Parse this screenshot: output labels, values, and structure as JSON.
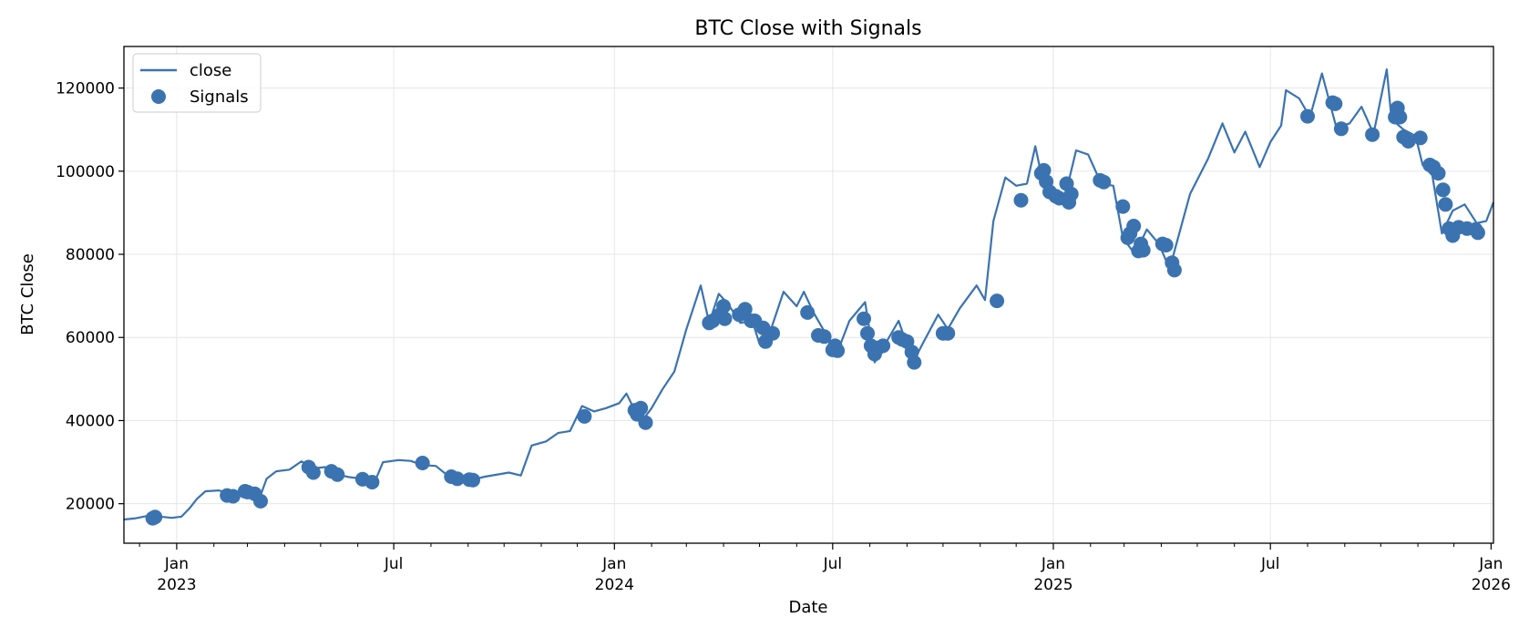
{
  "chart_data": {
    "type": "line",
    "title": "BTC Close with Signals",
    "xlabel": "Date",
    "ylabel": "BTC Close",
    "xlim": [
      "2022-11-18",
      "2026-01-03"
    ],
    "ylim": [
      10500,
      130000
    ],
    "grid": true,
    "legend": "top-left",
    "legend_entries": [
      "close",
      "Signals"
    ],
    "colors": {
      "series": "#3b73b0",
      "grid": "#e6e6e6",
      "axis": "#000000"
    },
    "y_ticks": [
      {
        "value": 20000,
        "label": "20000"
      },
      {
        "value": 40000,
        "label": "40000"
      },
      {
        "value": 60000,
        "label": "60000"
      },
      {
        "value": 80000,
        "label": "80000"
      },
      {
        "value": 100000,
        "label": "100000"
      },
      {
        "value": 120000,
        "label": "120000"
      }
    ],
    "x_major_ticks": [
      {
        "date": "2023-01-01",
        "label": "Jan",
        "sublabel": "2023"
      },
      {
        "date": "2023-07-01",
        "label": "Jul",
        "sublabel": ""
      },
      {
        "date": "2024-01-01",
        "label": "Jan",
        "sublabel": "2024"
      },
      {
        "date": "2024-07-01",
        "label": "Jul",
        "sublabel": ""
      },
      {
        "date": "2025-01-01",
        "label": "Jan",
        "sublabel": "2025"
      },
      {
        "date": "2025-07-01",
        "label": "Jul",
        "sublabel": ""
      },
      {
        "date": "2026-01-01",
        "label": "Jan",
        "sublabel": "2026"
      }
    ],
    "series": [
      {
        "name": "close",
        "kind": "line",
        "points": [
          [
            "2022-11-18",
            16200
          ],
          [
            "2022-11-28",
            16500
          ],
          [
            "2022-12-08",
            17100
          ],
          [
            "2022-12-18",
            16900
          ],
          [
            "2022-12-28",
            16600
          ],
          [
            "2023-01-05",
            16900
          ],
          [
            "2023-01-12",
            19000
          ],
          [
            "2023-01-18",
            21200
          ],
          [
            "2023-01-25",
            23000
          ],
          [
            "2023-02-05",
            23200
          ],
          [
            "2023-02-15",
            22400
          ],
          [
            "2023-02-25",
            23000
          ],
          [
            "2023-03-05",
            22000
          ],
          [
            "2023-03-10",
            20500
          ],
          [
            "2023-03-17",
            26000
          ],
          [
            "2023-03-25",
            27800
          ],
          [
            "2023-04-05",
            28200
          ],
          [
            "2023-04-15",
            30200
          ],
          [
            "2023-04-25",
            28500
          ],
          [
            "2023-05-05",
            28800
          ],
          [
            "2023-05-15",
            27000
          ],
          [
            "2023-05-25",
            26400
          ],
          [
            "2023-06-05",
            26000
          ],
          [
            "2023-06-15",
            25200
          ],
          [
            "2023-06-22",
            30000
          ],
          [
            "2023-07-05",
            30500
          ],
          [
            "2023-07-15",
            30300
          ],
          [
            "2023-07-25",
            29300
          ],
          [
            "2023-08-05",
            29100
          ],
          [
            "2023-08-17",
            26300
          ],
          [
            "2023-08-25",
            26000
          ],
          [
            "2023-09-05",
            25800
          ],
          [
            "2023-09-15",
            26500
          ],
          [
            "2023-10-05",
            27500
          ],
          [
            "2023-10-15",
            26800
          ],
          [
            "2023-10-24",
            34000
          ],
          [
            "2023-11-05",
            35000
          ],
          [
            "2023-11-15",
            37000
          ],
          [
            "2023-11-25",
            37500
          ],
          [
            "2023-12-05",
            43500
          ],
          [
            "2023-12-15",
            42200
          ],
          [
            "2023-12-25",
            43000
          ],
          [
            "2024-01-05",
            44200
          ],
          [
            "2024-01-11",
            46500
          ],
          [
            "2024-01-23",
            39500
          ],
          [
            "2024-02-01",
            43000
          ],
          [
            "2024-02-10",
            47500
          ],
          [
            "2024-02-20",
            51800
          ],
          [
            "2024-03-01",
            62000
          ],
          [
            "2024-03-13",
            72500
          ],
          [
            "2024-03-20",
            63500
          ],
          [
            "2024-03-28",
            70500
          ],
          [
            "2024-04-05",
            68000
          ],
          [
            "2024-04-15",
            63500
          ],
          [
            "2024-04-25",
            64000
          ],
          [
            "2024-05-01",
            58500
          ],
          [
            "2024-05-10",
            61500
          ],
          [
            "2024-05-21",
            71000
          ],
          [
            "2024-06-01",
            67500
          ],
          [
            "2024-06-07",
            71000
          ],
          [
            "2024-06-15",
            66000
          ],
          [
            "2024-06-25",
            61000
          ],
          [
            "2024-07-05",
            56500
          ],
          [
            "2024-07-15",
            64000
          ],
          [
            "2024-07-28",
            68500
          ],
          [
            "2024-08-05",
            54000
          ],
          [
            "2024-08-15",
            59000
          ],
          [
            "2024-08-25",
            64000
          ],
          [
            "2024-09-06",
            54000
          ],
          [
            "2024-09-15",
            59000
          ],
          [
            "2024-09-27",
            65500
          ],
          [
            "2024-10-05",
            62000
          ],
          [
            "2024-10-15",
            67000
          ],
          [
            "2024-10-29",
            72500
          ],
          [
            "2024-11-05",
            69000
          ],
          [
            "2024-11-12",
            88000
          ],
          [
            "2024-11-22",
            98500
          ],
          [
            "2024-12-01",
            96500
          ],
          [
            "2024-12-10",
            97000
          ],
          [
            "2024-12-17",
            106000
          ],
          [
            "2024-12-25",
            95000
          ],
          [
            "2025-01-01",
            94000
          ],
          [
            "2025-01-10",
            93000
          ],
          [
            "2025-01-20",
            105000
          ],
          [
            "2025-01-30",
            104000
          ],
          [
            "2025-02-10",
            97000
          ],
          [
            "2025-02-20",
            96500
          ],
          [
            "2025-02-28",
            84000
          ],
          [
            "2025-03-10",
            80000
          ],
          [
            "2025-03-20",
            86000
          ],
          [
            "2025-03-30",
            82500
          ],
          [
            "2025-04-08",
            76500
          ],
          [
            "2025-04-15",
            84000
          ],
          [
            "2025-04-25",
            94500
          ],
          [
            "2025-05-10",
            103000
          ],
          [
            "2025-05-22",
            111500
          ],
          [
            "2025-06-01",
            104500
          ],
          [
            "2025-06-10",
            109500
          ],
          [
            "2025-06-22",
            101000
          ],
          [
            "2025-07-01",
            107000
          ],
          [
            "2025-07-10",
            111000
          ],
          [
            "2025-07-14",
            119500
          ],
          [
            "2025-07-25",
            117500
          ],
          [
            "2025-08-03",
            113000
          ],
          [
            "2025-08-13",
            123500
          ],
          [
            "2025-08-25",
            110500
          ],
          [
            "2025-09-05",
            111500
          ],
          [
            "2025-09-15",
            115500
          ],
          [
            "2025-09-25",
            109000
          ],
          [
            "2025-10-06",
            124500
          ],
          [
            "2025-10-10",
            112500
          ],
          [
            "2025-10-20",
            110000
          ],
          [
            "2025-10-30",
            108500
          ],
          [
            "2025-11-05",
            101500
          ],
          [
            "2025-11-13",
            99000
          ],
          [
            "2025-11-21",
            85000
          ],
          [
            "2025-11-30",
            90500
          ],
          [
            "2025-12-10",
            92000
          ],
          [
            "2025-12-20",
            87500
          ],
          [
            "2025-12-28",
            88000
          ],
          [
            "2026-01-03",
            92500
          ]
        ]
      },
      {
        "name": "Signals",
        "kind": "scatter",
        "points": [
          [
            "2022-12-12",
            16500
          ],
          [
            "2022-12-14",
            16800
          ],
          [
            "2023-02-12",
            22000
          ],
          [
            "2023-02-17",
            21800
          ],
          [
            "2023-02-27",
            23000
          ],
          [
            "2023-03-01",
            22800
          ],
          [
            "2023-03-07",
            22400
          ],
          [
            "2023-03-12",
            20600
          ],
          [
            "2023-04-21",
            28800
          ],
          [
            "2023-04-25",
            27500
          ],
          [
            "2023-05-10",
            27800
          ],
          [
            "2023-05-15",
            27000
          ],
          [
            "2023-06-05",
            25900
          ],
          [
            "2023-06-13",
            25200
          ],
          [
            "2023-07-25",
            29800
          ],
          [
            "2023-08-18",
            26500
          ],
          [
            "2023-08-23",
            26000
          ],
          [
            "2023-09-02",
            25800
          ],
          [
            "2023-09-05",
            25700
          ],
          [
            "2023-12-07",
            41000
          ],
          [
            "2024-01-18",
            42500
          ],
          [
            "2024-01-20",
            41500
          ],
          [
            "2024-01-23",
            43000
          ],
          [
            "2024-01-27",
            39500
          ],
          [
            "2024-03-20",
            63500
          ],
          [
            "2024-03-23",
            64000
          ],
          [
            "2024-03-29",
            65500
          ],
          [
            "2024-04-01",
            67500
          ],
          [
            "2024-04-02",
            64500
          ],
          [
            "2024-04-14",
            65500
          ],
          [
            "2024-04-19",
            66800
          ],
          [
            "2024-04-24",
            64000
          ],
          [
            "2024-04-27",
            64000
          ],
          [
            "2024-05-04",
            62300
          ],
          [
            "2024-05-06",
            59000
          ],
          [
            "2024-05-12",
            61000
          ],
          [
            "2024-06-10",
            66000
          ],
          [
            "2024-06-19",
            60500
          ],
          [
            "2024-06-24",
            60200
          ],
          [
            "2024-07-01",
            57000
          ],
          [
            "2024-07-03",
            58000
          ],
          [
            "2024-07-05",
            56800
          ],
          [
            "2024-07-27",
            64500
          ],
          [
            "2024-07-30",
            61000
          ],
          [
            "2024-08-02",
            58000
          ],
          [
            "2024-08-05",
            56000
          ],
          [
            "2024-08-08",
            57500
          ],
          [
            "2024-08-12",
            58000
          ],
          [
            "2024-08-25",
            60000
          ],
          [
            "2024-08-28",
            59500
          ],
          [
            "2024-09-01",
            59000
          ],
          [
            "2024-09-05",
            56500
          ],
          [
            "2024-09-07",
            54000
          ],
          [
            "2024-10-01",
            61000
          ],
          [
            "2024-10-05",
            61000
          ],
          [
            "2024-11-15",
            68800
          ],
          [
            "2024-12-05",
            93000
          ],
          [
            "2024-12-22",
            99500
          ],
          [
            "2024-12-24",
            100200
          ],
          [
            "2024-12-26",
            97500
          ],
          [
            "2024-12-29",
            95000
          ],
          [
            "2025-01-03",
            94000
          ],
          [
            "2025-01-06",
            93500
          ],
          [
            "2025-01-12",
            97000
          ],
          [
            "2025-01-14",
            92500
          ],
          [
            "2025-01-16",
            94500
          ],
          [
            "2025-02-09",
            97800
          ],
          [
            "2025-02-12",
            97400
          ],
          [
            "2025-02-28",
            91500
          ],
          [
            "2025-03-04",
            84000
          ],
          [
            "2025-03-06",
            85000
          ],
          [
            "2025-03-09",
            86800
          ],
          [
            "2025-03-13",
            80800
          ],
          [
            "2025-03-15",
            82500
          ],
          [
            "2025-03-17",
            81000
          ],
          [
            "2025-04-02",
            82500
          ],
          [
            "2025-04-05",
            82200
          ],
          [
            "2025-04-10",
            78000
          ],
          [
            "2025-04-12",
            76200
          ],
          [
            "2025-08-01",
            113200
          ],
          [
            "2025-08-22",
            116500
          ],
          [
            "2025-08-24",
            116200
          ],
          [
            "2025-08-29",
            110200
          ],
          [
            "2025-09-24",
            108800
          ],
          [
            "2025-10-13",
            113000
          ],
          [
            "2025-10-15",
            115200
          ],
          [
            "2025-10-17",
            113000
          ],
          [
            "2025-10-20",
            108200
          ],
          [
            "2025-10-24",
            107200
          ],
          [
            "2025-11-03",
            108000
          ],
          [
            "2025-11-11",
            101500
          ],
          [
            "2025-11-14",
            101000
          ],
          [
            "2025-11-18",
            99500
          ],
          [
            "2025-11-22",
            95500
          ],
          [
            "2025-11-24",
            92000
          ],
          [
            "2025-11-27",
            86200
          ],
          [
            "2025-11-30",
            84500
          ],
          [
            "2025-12-05",
            86500
          ],
          [
            "2025-12-12",
            86200
          ],
          [
            "2025-12-19",
            86000
          ],
          [
            "2025-12-21",
            85200
          ]
        ]
      }
    ]
  }
}
